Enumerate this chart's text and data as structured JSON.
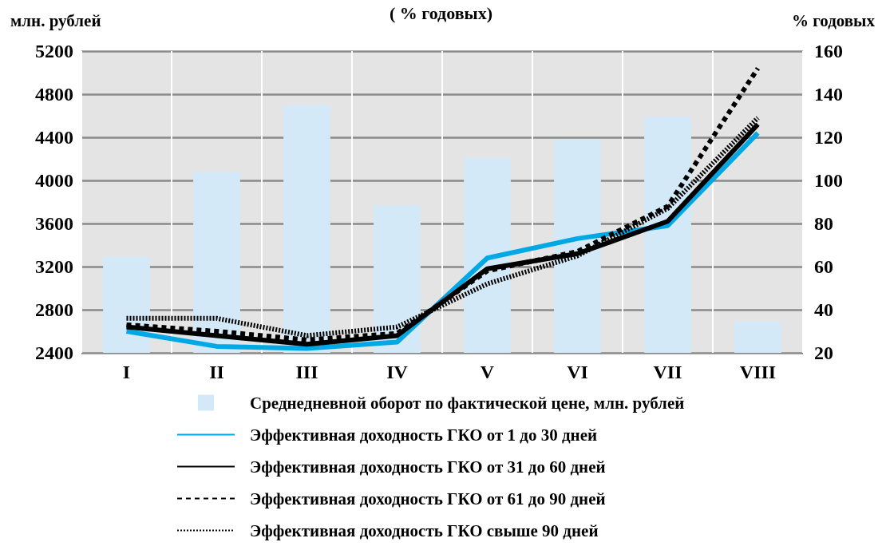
{
  "chart_data": {
    "type": "bar",
    "title": "( % годовых)",
    "ylabel": "млн. рублей",
    "y2label": "% годовых",
    "categories": [
      "I",
      "II",
      "III",
      "IV",
      "V",
      "VI",
      "VII",
      "VIII"
    ],
    "series": [
      {
        "name": "Среднедневной оборот по фактической цене, млн. рублей",
        "color": "#d3e9f8",
        "values": [
          3290,
          4080,
          4700,
          3770,
          4210,
          4380,
          4590,
          2690
        ]
      },
      {
        "name": "Эффективная доходность ГКО от 1 до 30 дней",
        "type": "line",
        "axis": "y2",
        "color": "#00a8e6",
        "line_style": "solid",
        "values": [
          30,
          23,
          22,
          25,
          64,
          73,
          79,
          122
        ]
      },
      {
        "name": "Эффективная доходность ГКО от 31 до 60 дней",
        "type": "line",
        "axis": "y2",
        "color": "#000000",
        "line_style": "solid",
        "values": [
          32,
          28,
          24,
          28,
          59,
          66,
          81,
          126
        ]
      },
      {
        "name": "Эффективная доходность ГКО от 61 до 90 дней",
        "type": "line",
        "axis": "y2",
        "color": "#000000",
        "line_style": "dashed",
        "values": [
          33,
          30,
          26,
          29,
          58,
          67,
          88,
          152
        ]
      },
      {
        "name": "Эффективная доходность ГКО свыше 90 дней",
        "type": "line",
        "axis": "y2",
        "color": "#000000",
        "line_style": "dotted",
        "values": [
          36,
          36,
          28,
          32,
          52,
          65,
          87,
          129
        ]
      }
    ],
    "ylim": [
      2400,
      5200
    ],
    "yticks": [
      2400,
      2800,
      3200,
      3600,
      4000,
      4400,
      4800,
      5200
    ],
    "y2lim": [
      20,
      160
    ],
    "y2ticks": [
      20,
      40,
      60,
      80,
      100,
      120,
      140,
      160
    ],
    "grid": true,
    "legend": "bottom",
    "marker": "none"
  }
}
